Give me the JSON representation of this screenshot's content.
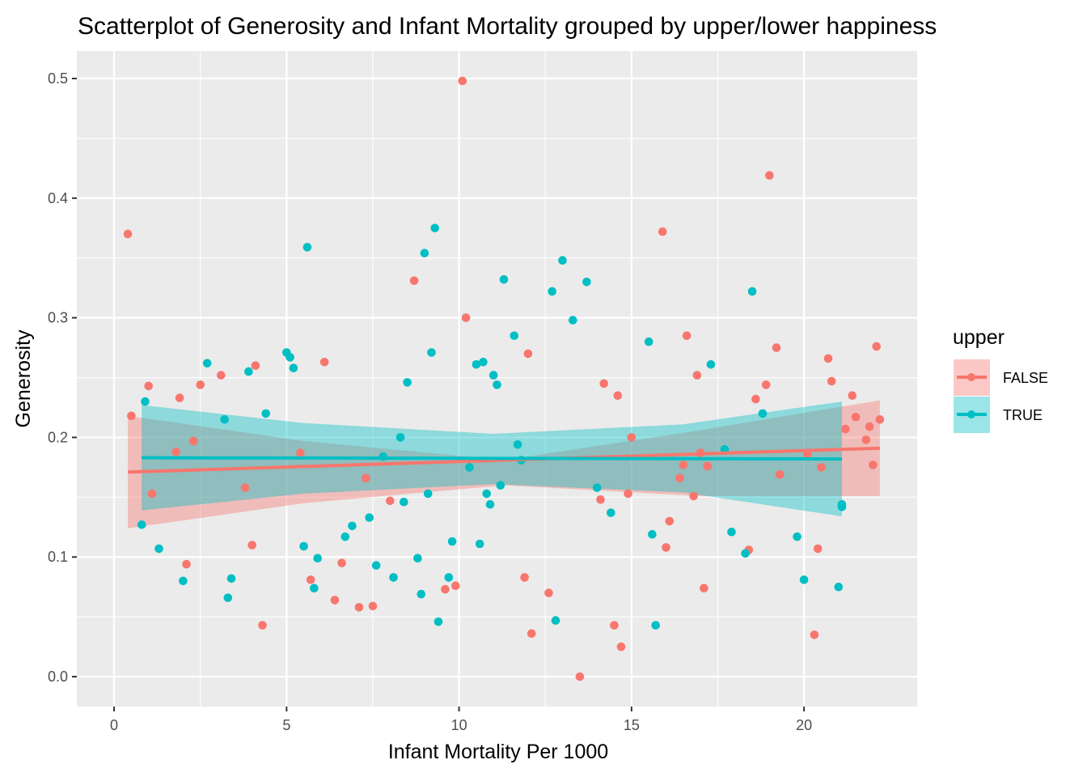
{
  "chart_data": {
    "type": "scatter",
    "title": "Scatterplot of Generosity and Infant Mortality grouped by upper/lower happiness",
    "xlabel": "Infant Mortality Per 1000",
    "ylabel": "Generosity",
    "xlim": [
      -1.08,
      23.28
    ],
    "ylim": [
      -0.025,
      0.523
    ],
    "xticks": [
      0,
      5,
      10,
      15,
      20
    ],
    "xtick_labels": [
      "0",
      "5",
      "10",
      "15",
      "20"
    ],
    "yticks": [
      0.0,
      0.1,
      0.2,
      0.3,
      0.4,
      0.5
    ],
    "ytick_labels": [
      "0.0",
      "0.1",
      "0.2",
      "0.3",
      "0.4",
      "0.5"
    ],
    "grid": true,
    "legend": {
      "title": "upper",
      "position": "right",
      "entries": [
        {
          "label": "FALSE",
          "color": "#F8766D"
        },
        {
          "label": "TRUE",
          "color": "#00BFC4"
        }
      ]
    },
    "series": [
      {
        "name": "FALSE",
        "color": "#F8766D",
        "points": [
          [
            0.4,
            0.37
          ],
          [
            0.5,
            0.218
          ],
          [
            1.0,
            0.243
          ],
          [
            1.1,
            0.153
          ],
          [
            1.8,
            0.188
          ],
          [
            1.9,
            0.233
          ],
          [
            2.1,
            0.094
          ],
          [
            2.3,
            0.197
          ],
          [
            2.5,
            0.244
          ],
          [
            3.1,
            0.252
          ],
          [
            3.8,
            0.158
          ],
          [
            4.0,
            0.11
          ],
          [
            4.1,
            0.26
          ],
          [
            4.3,
            0.043
          ],
          [
            5.4,
            0.187
          ],
          [
            5.7,
            0.081
          ],
          [
            6.1,
            0.263
          ],
          [
            6.4,
            0.064
          ],
          [
            6.6,
            0.095
          ],
          [
            7.1,
            0.058
          ],
          [
            7.3,
            0.166
          ],
          [
            7.5,
            0.059
          ],
          [
            8.0,
            0.147
          ],
          [
            8.7,
            0.331
          ],
          [
            9.6,
            0.073
          ],
          [
            9.9,
            0.076
          ],
          [
            10.1,
            0.498
          ],
          [
            10.2,
            0.3
          ],
          [
            11.9,
            0.083
          ],
          [
            12.0,
            0.27
          ],
          [
            12.1,
            0.036
          ],
          [
            12.6,
            0.07
          ],
          [
            13.5,
            0.0
          ],
          [
            14.1,
            0.148
          ],
          [
            14.2,
            0.245
          ],
          [
            14.5,
            0.043
          ],
          [
            14.6,
            0.235
          ],
          [
            14.7,
            0.025
          ],
          [
            14.9,
            0.153
          ],
          [
            15.0,
            0.2
          ],
          [
            15.9,
            0.372
          ],
          [
            16.0,
            0.108
          ],
          [
            16.1,
            0.13
          ],
          [
            16.4,
            0.166
          ],
          [
            16.5,
            0.177
          ],
          [
            16.6,
            0.285
          ],
          [
            16.8,
            0.151
          ],
          [
            16.9,
            0.252
          ],
          [
            17.0,
            0.187
          ],
          [
            17.1,
            0.074
          ],
          [
            17.2,
            0.176
          ],
          [
            18.4,
            0.106
          ],
          [
            18.6,
            0.232
          ],
          [
            18.9,
            0.244
          ],
          [
            19.0,
            0.419
          ],
          [
            19.2,
            0.275
          ],
          [
            19.3,
            0.169
          ],
          [
            20.1,
            0.186
          ],
          [
            20.3,
            0.035
          ],
          [
            20.4,
            0.107
          ],
          [
            20.5,
            0.175
          ],
          [
            20.7,
            0.266
          ],
          [
            20.8,
            0.247
          ],
          [
            21.2,
            0.207
          ],
          [
            21.4,
            0.235
          ],
          [
            21.5,
            0.217
          ],
          [
            21.8,
            0.198
          ],
          [
            21.9,
            0.209
          ],
          [
            22.0,
            0.177
          ],
          [
            22.1,
            0.276
          ],
          [
            22.2,
            0.215
          ]
        ],
        "fit": {
          "x": [
            0.4,
            22.2
          ],
          "y": [
            0.171,
            0.191
          ]
        },
        "ci": {
          "x": [
            0.4,
            5.5,
            11.3,
            17.0,
            22.2
          ],
          "lower": [
            0.124,
            0.145,
            0.16,
            0.151,
            0.151
          ],
          "upper": [
            0.218,
            0.197,
            0.181,
            0.206,
            0.231
          ]
        }
      },
      {
        "name": "TRUE",
        "color": "#00BFC4",
        "points": [
          [
            0.8,
            0.127
          ],
          [
            0.9,
            0.23
          ],
          [
            1.3,
            0.107
          ],
          [
            2.0,
            0.08
          ],
          [
            2.7,
            0.262
          ],
          [
            3.2,
            0.215
          ],
          [
            3.3,
            0.066
          ],
          [
            3.4,
            0.082
          ],
          [
            3.9,
            0.255
          ],
          [
            4.4,
            0.22
          ],
          [
            5.0,
            0.271
          ],
          [
            5.1,
            0.267
          ],
          [
            5.2,
            0.258
          ],
          [
            5.5,
            0.109
          ],
          [
            5.6,
            0.359
          ],
          [
            5.8,
            0.074
          ],
          [
            5.9,
            0.099
          ],
          [
            6.7,
            0.117
          ],
          [
            6.9,
            0.126
          ],
          [
            7.4,
            0.133
          ],
          [
            7.6,
            0.093
          ],
          [
            7.8,
            0.184
          ],
          [
            8.1,
            0.083
          ],
          [
            8.3,
            0.2
          ],
          [
            8.4,
            0.146
          ],
          [
            8.5,
            0.246
          ],
          [
            8.8,
            0.099
          ],
          [
            8.9,
            0.069
          ],
          [
            9.0,
            0.354
          ],
          [
            9.1,
            0.153
          ],
          [
            9.2,
            0.271
          ],
          [
            9.3,
            0.375
          ],
          [
            9.4,
            0.046
          ],
          [
            9.7,
            0.083
          ],
          [
            9.8,
            0.113
          ],
          [
            10.3,
            0.175
          ],
          [
            10.5,
            0.261
          ],
          [
            10.6,
            0.111
          ],
          [
            10.7,
            0.263
          ],
          [
            10.8,
            0.153
          ],
          [
            10.9,
            0.144
          ],
          [
            11.0,
            0.252
          ],
          [
            11.1,
            0.244
          ],
          [
            11.2,
            0.16
          ],
          [
            11.3,
            0.332
          ],
          [
            11.6,
            0.285
          ],
          [
            11.7,
            0.194
          ],
          [
            11.8,
            0.181
          ],
          [
            12.7,
            0.322
          ],
          [
            12.8,
            0.047
          ],
          [
            13.0,
            0.348
          ],
          [
            13.3,
            0.298
          ],
          [
            13.7,
            0.33
          ],
          [
            14.0,
            0.158
          ],
          [
            14.4,
            0.137
          ],
          [
            15.5,
            0.28
          ],
          [
            15.6,
            0.119
          ],
          [
            15.7,
            0.043
          ],
          [
            17.3,
            0.261
          ],
          [
            17.7,
            0.19
          ],
          [
            17.9,
            0.121
          ],
          [
            18.3,
            0.103
          ],
          [
            18.5,
            0.322
          ],
          [
            18.8,
            0.22
          ],
          [
            19.8,
            0.117
          ],
          [
            20.0,
            0.081
          ],
          [
            21.0,
            0.075
          ],
          [
            21.1,
            0.144
          ],
          [
            21.1,
            0.142
          ]
        ],
        "fit": {
          "x": [
            0.8,
            21.1
          ],
          "y": [
            0.183,
            0.182
          ]
        },
        "ci": {
          "x": [
            0.8,
            5.5,
            11.0,
            16.5,
            21.1
          ],
          "lower": [
            0.139,
            0.153,
            0.161,
            0.154,
            0.134
          ],
          "upper": [
            0.227,
            0.212,
            0.203,
            0.211,
            0.23
          ]
        }
      }
    ]
  }
}
